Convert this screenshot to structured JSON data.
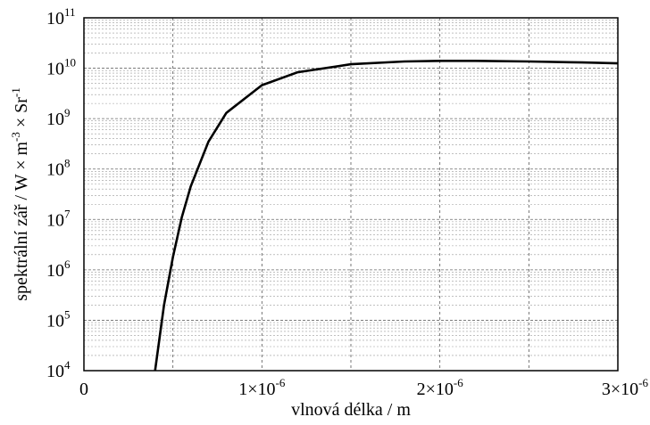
{
  "chart_data": {
    "type": "line",
    "xlabel": "vlnová délka / m",
    "ylabel_parts": [
      "spektrální zář  / W × m",
      "-3",
      " × Sr",
      "-1"
    ],
    "xlim": [
      0,
      3e-06
    ],
    "ylim": [
      10000,
      100000000000
    ],
    "yscale": "log",
    "grid": true,
    "x_ticks": [
      {
        "value": 0,
        "base": "0",
        "exp": ""
      },
      {
        "value": 1e-06,
        "base": "1×10",
        "exp": "-6"
      },
      {
        "value": 2e-06,
        "base": "2×10",
        "exp": "-6"
      },
      {
        "value": 3e-06,
        "base": "3×10",
        "exp": "-6"
      }
    ],
    "x_grid": [
      5e-07,
      1e-06,
      1.5e-06,
      2e-06,
      2.5e-06
    ],
    "y_ticks": [
      {
        "value": 10000,
        "base": "10",
        "exp": "4"
      },
      {
        "value": 100000,
        "base": "10",
        "exp": "5"
      },
      {
        "value": 1000000,
        "base": "10",
        "exp": "6"
      },
      {
        "value": 10000000,
        "base": "10",
        "exp": "7"
      },
      {
        "value": 100000000,
        "base": "10",
        "exp": "8"
      },
      {
        "value": 1000000000,
        "base": "10",
        "exp": "9"
      },
      {
        "value": 10000000000,
        "base": "10",
        "exp": "10"
      },
      {
        "value": 100000000000,
        "base": "10",
        "exp": "11"
      }
    ],
    "series": [
      {
        "x": [
          4e-07,
          4.5e-07,
          5e-07,
          5.5e-07,
          6e-07,
          7e-07,
          8e-07,
          1e-06,
          1.2e-06,
          1.5e-06,
          1.8e-06,
          2e-06,
          2.2e-06,
          2.5e-06,
          2.8e-06,
          3e-06
        ],
        "values": [
          10000,
          200000,
          1800000,
          11000000,
          45000000,
          350000000,
          1300000000,
          4600000000,
          8300000000,
          12000000000,
          13600000000,
          14000000000,
          14000000000,
          13600000000,
          13000000000,
          12500000000
        ]
      }
    ]
  }
}
